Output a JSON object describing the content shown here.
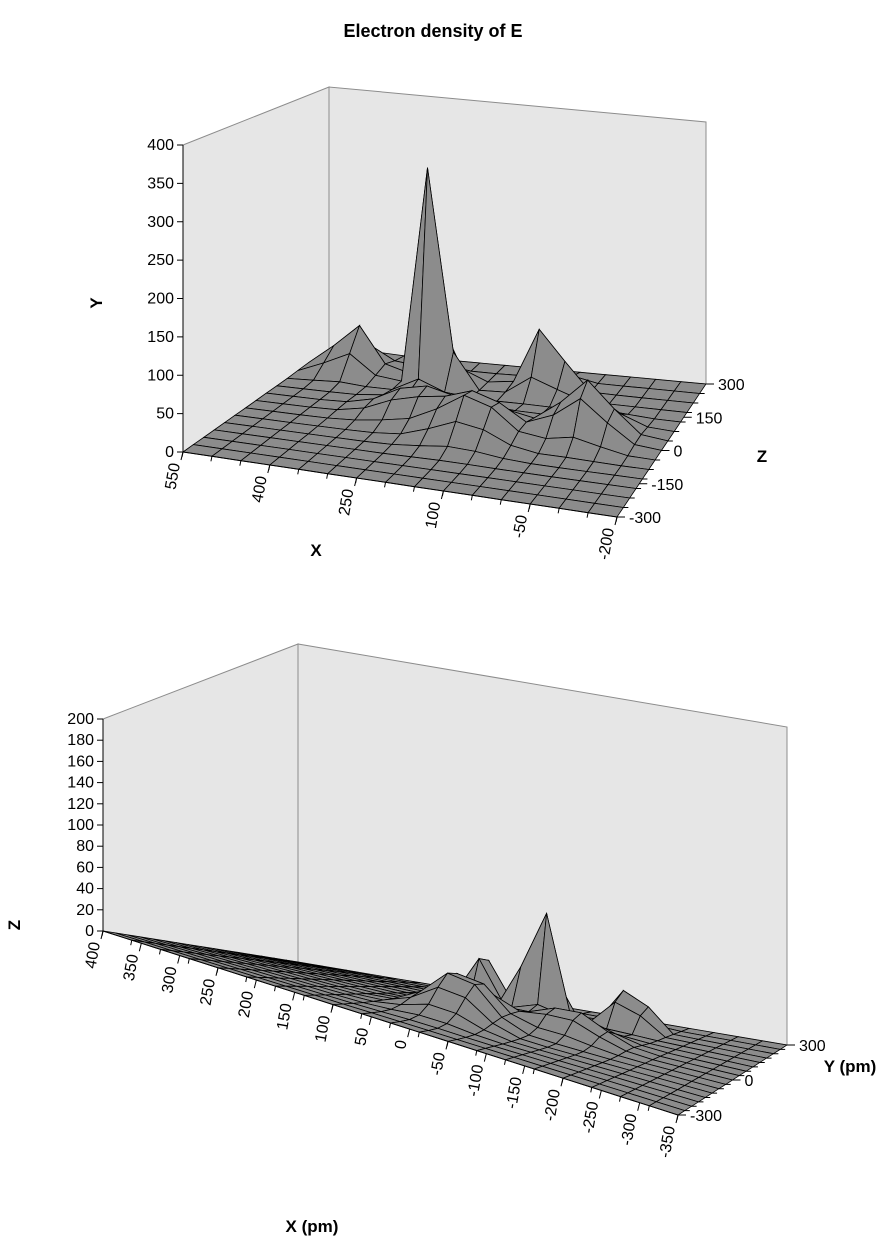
{
  "title": "Electron density of E",
  "chart_data": [
    {
      "type": "surface",
      "style": "3d-wireframe-surface",
      "vertical_axis": {
        "label": "Y",
        "range": [
          0,
          400
        ],
        "ticks": [
          "0",
          "50",
          "100",
          "150",
          "200",
          "250",
          "300",
          "350",
          "400"
        ]
      },
      "front_axis": {
        "label": "X",
        "ticks": [
          "550",
          "400",
          "250",
          "100",
          "-50",
          "-200"
        ]
      },
      "depth_axis": {
        "label": "Z",
        "ticks": [
          "300",
          "150",
          "0",
          "-150",
          "-300"
        ]
      },
      "peaks": [
        {
          "x": 250,
          "z": 150,
          "value": 385
        },
        {
          "x": 450,
          "z": 150,
          "value": 105
        },
        {
          "x": -50,
          "z": 150,
          "value": 125
        },
        {
          "x": -150,
          "z": 0,
          "value": 75
        },
        {
          "x": 100,
          "z": 0,
          "value": 45
        },
        {
          "x": 200,
          "z": 50,
          "value": 85
        }
      ],
      "colors": {
        "surface": "#8c8c8c",
        "walls": "#e6e6e6"
      }
    },
    {
      "type": "surface",
      "style": "3d-wireframe-surface",
      "vertical_axis": {
        "label": "Z",
        "range": [
          0,
          200
        ],
        "ticks": [
          "0",
          "20",
          "40",
          "60",
          "80",
          "100",
          "120",
          "140",
          "160",
          "180",
          "200"
        ]
      },
      "front_axis": {
        "label": "X (pm)",
        "ticks": [
          "400",
          "350",
          "300",
          "250",
          "200",
          "150",
          "100",
          "50",
          "0",
          "-50",
          "-100",
          "-150",
          "-200",
          "-250",
          "-300",
          "-350"
        ]
      },
      "depth_axis": {
        "label": "Y (pm)",
        "ticks": [
          "300",
          "0",
          "-300"
        ]
      },
      "peaks": [
        {
          "x": -75,
          "y": 0,
          "value": 202
        },
        {
          "x": -25,
          "y": 150,
          "value": 80
        },
        {
          "x": -200,
          "y": 150,
          "value": 73
        },
        {
          "x": -75,
          "y": -100,
          "value": 45
        },
        {
          "x": -175,
          "y": 100,
          "value": 40
        }
      ],
      "colors": {
        "surface": "#8c8c8c",
        "walls": "#e6e6e6"
      }
    }
  ]
}
